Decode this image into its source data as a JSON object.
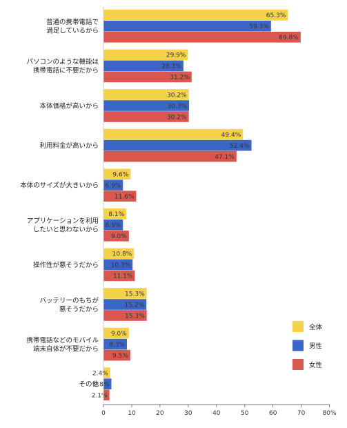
{
  "chart_data": {
    "type": "bar",
    "orientation": "horizontal",
    "categories": [
      [
        "普通の携帯電話で",
        "満足しているから"
      ],
      [
        "パソコンのような機能は",
        "携帯電話に不要だから"
      ],
      [
        "本体価格が高いから"
      ],
      [
        "利用料金が高いから"
      ],
      [
        "本体のサイズが大きいから"
      ],
      [
        "アプリケーションを利用",
        "したいと思わないから"
      ],
      [
        "操作性が悪そうだから"
      ],
      [
        "バッテリーのもちが",
        "悪そうだから"
      ],
      [
        "携帯電話などのモバイル",
        "端末自体が不要だから"
      ],
      [
        "その他"
      ]
    ],
    "series": [
      {
        "name": "全体",
        "color": "#f6d24a",
        "values": [
          65.3,
          29.9,
          30.2,
          49.4,
          9.6,
          8.1,
          10.8,
          15.3,
          9.0,
          2.4
        ],
        "labels": [
          "65.3%",
          "29.9%",
          "30.2%",
          "49.4%",
          "9.6%",
          "8.1%",
          "10.8%",
          "15.3%",
          "9.0%",
          "2.4%"
        ]
      },
      {
        "name": "男性",
        "color": "#3b66c8",
        "values": [
          59.3,
          28.3,
          30.3,
          52.4,
          6.9,
          6.9,
          10.3,
          15.2,
          8.3,
          2.8
        ],
        "labels": [
          "59.3%",
          "28.3%",
          "30.3%",
          "52.4%",
          "6.9%",
          "6.9%",
          "10.3%",
          "15.2%",
          "8.3%",
          "2.8%"
        ]
      },
      {
        "name": "女性",
        "color": "#d9574f",
        "values": [
          69.8,
          31.2,
          30.2,
          47.1,
          11.6,
          9.0,
          11.1,
          15.3,
          9.5,
          2.1
        ],
        "labels": [
          "69.8%",
          "31.2%",
          "30.2%",
          "47.1%",
          "11.6%",
          "9.0%",
          "11.1%",
          "15.3%",
          "9.5%",
          "2.1%"
        ]
      }
    ],
    "xlim": [
      0,
      80
    ],
    "xticks": [
      "0",
      "10",
      "20",
      "30",
      "40",
      "50",
      "60",
      "70",
      "80%"
    ],
    "grid": false,
    "legend_position": "right"
  }
}
